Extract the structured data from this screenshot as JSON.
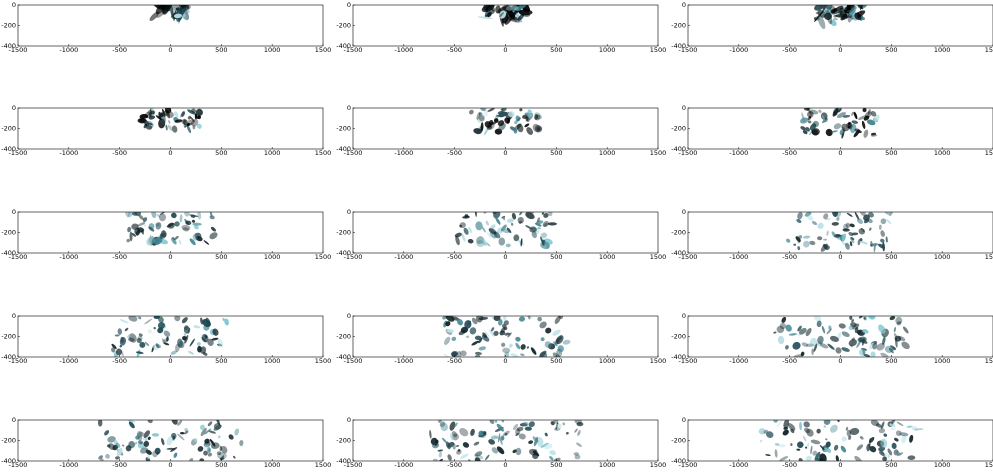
{
  "chart_data": [
    {
      "type": "heatmap",
      "xlim": [
        -1500,
        1500
      ],
      "ylim": [
        -400,
        0
      ],
      "xticks": [
        -1500,
        -1000,
        -500,
        0,
        500,
        1000,
        1500
      ],
      "yticks": [
        0,
        -200,
        -400
      ]
    },
    {
      "type": "heatmap",
      "xlim": [
        -1500,
        1500
      ],
      "ylim": [
        -400,
        0
      ],
      "xticks": [
        -1500,
        -1000,
        -500,
        0,
        500,
        1000,
        1500
      ],
      "yticks": [
        0,
        -200,
        -400
      ]
    },
    {
      "type": "heatmap",
      "xlim": [
        -1500,
        1500
      ],
      "ylim": [
        -400,
        0
      ],
      "xticks": [
        -1500,
        -1000,
        -500,
        0,
        500,
        1000,
        1500
      ],
      "yticks": [
        0,
        -200,
        -400
      ]
    },
    {
      "type": "heatmap",
      "xlim": [
        -1500,
        1500
      ],
      "ylim": [
        -400,
        0
      ],
      "xticks": [
        -1500,
        -1000,
        -500,
        0,
        500,
        1000,
        1500
      ],
      "yticks": [
        0,
        -200,
        -400
      ]
    },
    {
      "type": "heatmap",
      "xlim": [
        -1500,
        1500
      ],
      "ylim": [
        -400,
        0
      ],
      "xticks": [
        -1500,
        -1000,
        -500,
        0,
        500,
        1000,
        1500
      ],
      "yticks": [
        0,
        -200,
        -400
      ]
    },
    {
      "type": "heatmap",
      "xlim": [
        -1500,
        1500
      ],
      "ylim": [
        -400,
        0
      ],
      "xticks": [
        -1500,
        -1000,
        -500,
        0,
        500,
        1000,
        1500
      ],
      "yticks": [
        0,
        -200,
        -400
      ]
    },
    {
      "type": "heatmap",
      "xlim": [
        -1500,
        1500
      ],
      "ylim": [
        -400,
        0
      ],
      "xticks": [
        -1500,
        -1000,
        -500,
        0,
        500,
        1000,
        1500
      ],
      "yticks": [
        0,
        -200,
        -400
      ]
    },
    {
      "type": "heatmap",
      "xlim": [
        -1500,
        1500
      ],
      "ylim": [
        -400,
        0
      ],
      "xticks": [
        -1500,
        -1000,
        -500,
        0,
        500,
        1000,
        1500
      ],
      "yticks": [
        0,
        -200,
        -400
      ]
    },
    {
      "type": "heatmap",
      "xlim": [
        -1500,
        1500
      ],
      "ylim": [
        -400,
        0
      ],
      "xticks": [
        -1500,
        -1000,
        -500,
        0,
        500,
        1000,
        1500
      ],
      "yticks": [
        0,
        -200,
        -400
      ]
    },
    {
      "type": "heatmap",
      "xlim": [
        -1500,
        1500
      ],
      "ylim": [
        -400,
        0
      ],
      "xticks": [
        -1500,
        -1000,
        -500,
        0,
        500,
        1000,
        1500
      ],
      "yticks": [
        0,
        -200,
        -400
      ]
    },
    {
      "type": "heatmap",
      "xlim": [
        -1500,
        1500
      ],
      "ylim": [
        -400,
        0
      ],
      "xticks": [
        -1500,
        -1000,
        -500,
        0,
        500,
        1000,
        1500
      ],
      "yticks": [
        0,
        -200,
        -400
      ]
    },
    {
      "type": "heatmap",
      "xlim": [
        -1500,
        1500
      ],
      "ylim": [
        -400,
        0
      ],
      "xticks": [
        -1500,
        -1000,
        -500,
        0,
        500,
        1000,
        1500
      ],
      "yticks": [
        0,
        -200,
        -400
      ]
    },
    {
      "type": "heatmap",
      "xlim": [
        -1500,
        1500
      ],
      "ylim": [
        -400,
        0
      ],
      "xticks": [
        -1500,
        -1000,
        -500,
        0,
        500,
        1000,
        1500
      ],
      "yticks": [
        0,
        -200,
        -400
      ]
    },
    {
      "type": "heatmap",
      "xlim": [
        -1500,
        1500
      ],
      "ylim": [
        -400,
        0
      ],
      "xticks": [
        -1500,
        -1000,
        -500,
        0,
        500,
        1000,
        1500
      ],
      "yticks": [
        0,
        -200,
        -400
      ]
    },
    {
      "type": "heatmap",
      "xlim": [
        -1500,
        1500
      ],
      "ylim": [
        -400,
        0
      ],
      "xticks": [
        -1500,
        -1000,
        -500,
        0,
        500,
        1000,
        1500
      ],
      "yticks": [
        0,
        -200,
        -400
      ]
    }
  ]
}
